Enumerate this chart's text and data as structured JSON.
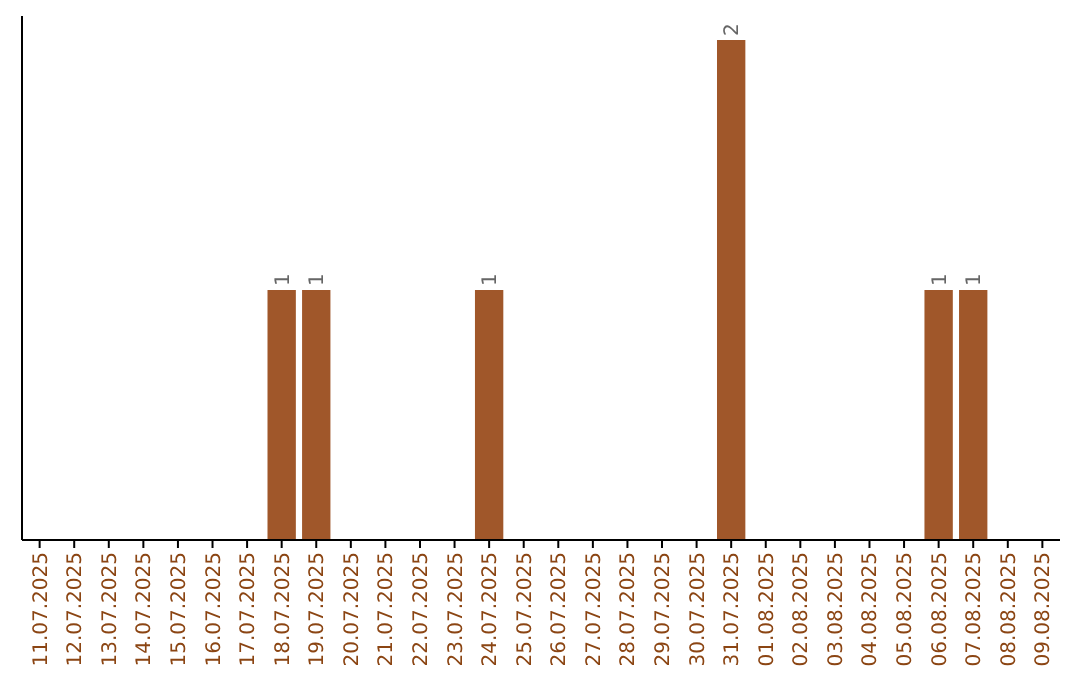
{
  "chart_data": {
    "type": "bar",
    "categories": [
      "11.07.2025",
      "12.07.2025",
      "13.07.2025",
      "14.07.2025",
      "15.07.2025",
      "16.07.2025",
      "17.07.2025",
      "18.07.2025",
      "19.07.2025",
      "20.07.2025",
      "21.07.2025",
      "22.07.2025",
      "23.07.2025",
      "24.07.2025",
      "25.07.2025",
      "26.07.2025",
      "27.07.2025",
      "28.07.2025",
      "29.07.2025",
      "30.07.2025",
      "31.07.2025",
      "01.08.2025",
      "02.08.2025",
      "03.08.2025",
      "04.08.2025",
      "05.08.2025",
      "06.08.2025",
      "07.08.2025",
      "08.08.2025",
      "09.08.2025"
    ],
    "values": [
      0,
      0,
      0,
      0,
      0,
      0,
      0,
      1,
      1,
      0,
      0,
      0,
      0,
      1,
      0,
      0,
      0,
      0,
      0,
      0,
      2,
      0,
      0,
      0,
      0,
      0,
      1,
      1,
      0,
      0
    ],
    "value_labels": [
      null,
      null,
      null,
      null,
      null,
      null,
      null,
      "1",
      "1",
      null,
      null,
      null,
      null,
      "1",
      null,
      null,
      null,
      null,
      null,
      null,
      "2",
      null,
      null,
      null,
      null,
      null,
      "1",
      "1",
      null,
      null
    ],
    "color": "#a0572a"
  }
}
